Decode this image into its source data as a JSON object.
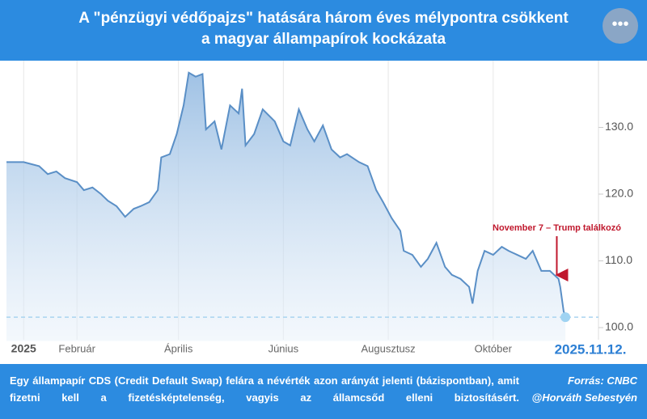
{
  "header": {
    "title_lines": [
      "A \"pénzügyi védőpajzs\" hatására három éves mélypontra csökkent",
      "a magyar állampapírok kockázata"
    ]
  },
  "chart_data": {
    "type": "line",
    "color": "#5a8fc6",
    "x": [
      -10,
      0,
      9,
      14,
      19,
      24,
      31,
      35,
      40,
      45,
      49,
      54,
      59,
      64,
      68,
      73,
      78,
      80,
      85,
      89,
      93,
      96,
      100,
      104,
      106,
      111,
      115,
      120,
      125,
      127,
      129,
      134,
      139,
      146,
      151,
      155,
      160,
      165,
      169,
      174,
      179,
      184,
      188,
      195,
      200,
      205,
      209,
      214,
      219,
      221,
      226,
      231,
      235,
      240,
      245,
      249,
      254,
      259,
      261,
      264,
      268,
      273,
      278,
      282,
      287,
      292,
      296,
      301,
      306,
      311,
      312,
      314,
      315
    ],
    "values": [
      124.8,
      124.8,
      124.2,
      123,
      123.4,
      122.4,
      121.8,
      120.6,
      121,
      120,
      119,
      118.2,
      116.6,
      117.8,
      118.2,
      118.8,
      120.6,
      125.5,
      126,
      129,
      133.3,
      138.2,
      137.6,
      138,
      129.7,
      130.9,
      126.7,
      133.3,
      132.1,
      135.8,
      127.3,
      129,
      132.7,
      130.9,
      127.9,
      127.3,
      132.7,
      129.7,
      127.9,
      130.3,
      126.7,
      125.5,
      126,
      124.8,
      124.2,
      120.6,
      118.8,
      116.4,
      114.5,
      111.5,
      110.9,
      109.1,
      110.3,
      112.7,
      109.1,
      107.9,
      107.3,
      106.1,
      103.6,
      108.5,
      111.5,
      110.9,
      112.1,
      111.5,
      110.9,
      110.3,
      111.5,
      108.5,
      108.5,
      107.3,
      106.1,
      102.4,
      101.8
    ],
    "xlim": [
      -10,
      330
    ],
    "ylim": [
      98,
      140
    ],
    "xticks": [
      {
        "value": 0,
        "label": "2025"
      },
      {
        "value": 31,
        "label": "Február"
      },
      {
        "value": 90,
        "label": "Április"
      },
      {
        "value": 151,
        "label": "Június"
      },
      {
        "value": 212,
        "label": "Augusztusz"
      },
      {
        "value": 273,
        "label": "Október"
      }
    ],
    "yticks": [
      {
        "value": 100,
        "label": "100.0"
      },
      {
        "value": 110,
        "label": "110.0"
      },
      {
        "value": 120,
        "label": "120.0"
      },
      {
        "value": 130,
        "label": "130.0"
      }
    ],
    "grid": true,
    "annotation": {
      "text": "November 7 – Trump találkozó",
      "x": 310
    },
    "date_label": "2025.11.12."
  },
  "footer": {
    "note": "Egy állampapír CDS (Credit Default Swap) felára a névérték azon arányát jelenti (bázispontban), amit fizetni kell a fizetésképtelenség, vagyis az államcsőd elleni biztosításért.",
    "source": "Forrás: CNBC",
    "author": "@Horváth Sebestyén"
  }
}
